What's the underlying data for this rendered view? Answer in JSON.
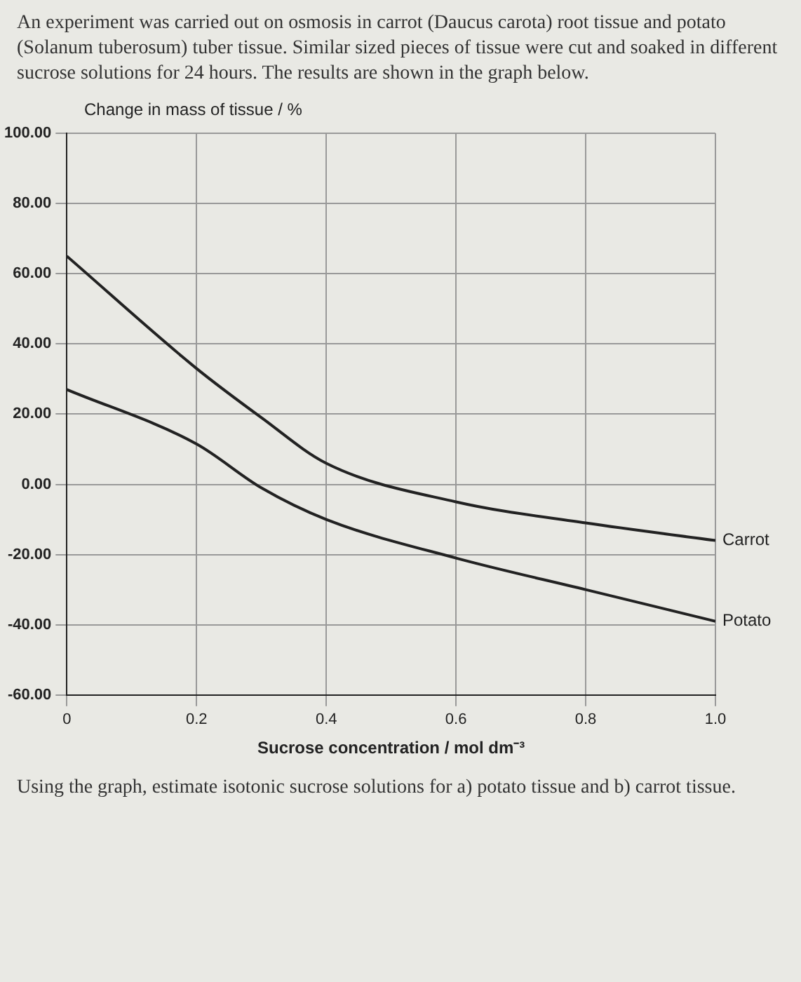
{
  "chart_data": {
    "type": "line",
    "title": "An experiment was carried out on osmosis in carrot (Daucus carota) root tissue and potato (Solanum tuberosum) tuber tissue. Similar sized pieces of tissue were cut and soaked in different sucrose solutions for 24 hours. The results are shown in the graph below.",
    "xlabel": "Sucrose concentration / mol dm⁻³",
    "ylabel": "Change in mass of tissue / %",
    "annotations": [
      "Using the graph, estimate isotonic sucrose solutions for a) potato tissue and b) carrot tissue."
    ],
    "x": [
      0,
      0.2,
      0.3,
      0.4,
      0.6,
      0.8,
      1.0
    ],
    "series": [
      {
        "name": "Carrot",
        "color": "#222222",
        "values": [
          65,
          33,
          19,
          6,
          -5,
          -11,
          -16
        ]
      },
      {
        "name": "Potato",
        "color": "#222222",
        "values": [
          27,
          11.5,
          -1,
          -10,
          -21,
          -30,
          -39
        ]
      }
    ],
    "xlim": [
      0,
      1
    ],
    "xticks": [
      0,
      0.2,
      0.4,
      0.6,
      0.8,
      {
        "value": 1,
        "label": "1.0"
      }
    ],
    "ylim": [
      -60,
      100
    ],
    "yticks": [
      {
        "value": -60,
        "label": "-60.00"
      },
      {
        "value": -40,
        "label": "-40.00"
      },
      {
        "value": -20,
        "label": "-20.00"
      },
      {
        "value": 0,
        "label": "0.00"
      },
      {
        "value": 20,
        "label": "20.00"
      },
      {
        "value": 40,
        "label": "40.00"
      },
      {
        "value": 60,
        "label": "60.00"
      },
      {
        "value": 80,
        "label": "80.00"
      },
      {
        "value": 100,
        "label": "100.00"
      }
    ],
    "grid": true,
    "legend": false,
    "marker": "none",
    "line_style": "solid"
  }
}
